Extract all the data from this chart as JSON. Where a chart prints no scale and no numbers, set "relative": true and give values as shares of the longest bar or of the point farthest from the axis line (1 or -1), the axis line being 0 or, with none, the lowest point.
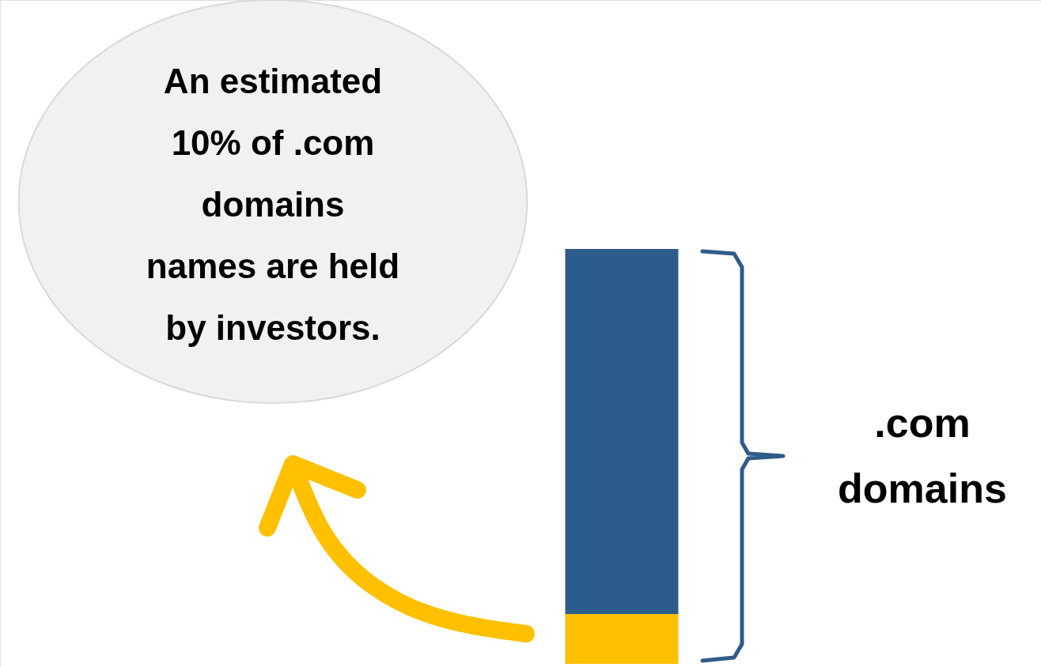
{
  "chart_data": {
    "type": "bar",
    "categories": [
      null
    ],
    "stacked": true,
    "relative": true,
    "legend": false,
    "series": [
      {
        "color": "#ffc000",
        "values": [
          0.12
        ]
      },
      {
        "color": "#2e5c8a",
        "values": [
          0.88
        ]
      }
    ],
    "annotations": [
      "An estimated\n10% of .com\ndomains\nnames are held\nby investors.",
      ".com\ndomains"
    ]
  }
}
